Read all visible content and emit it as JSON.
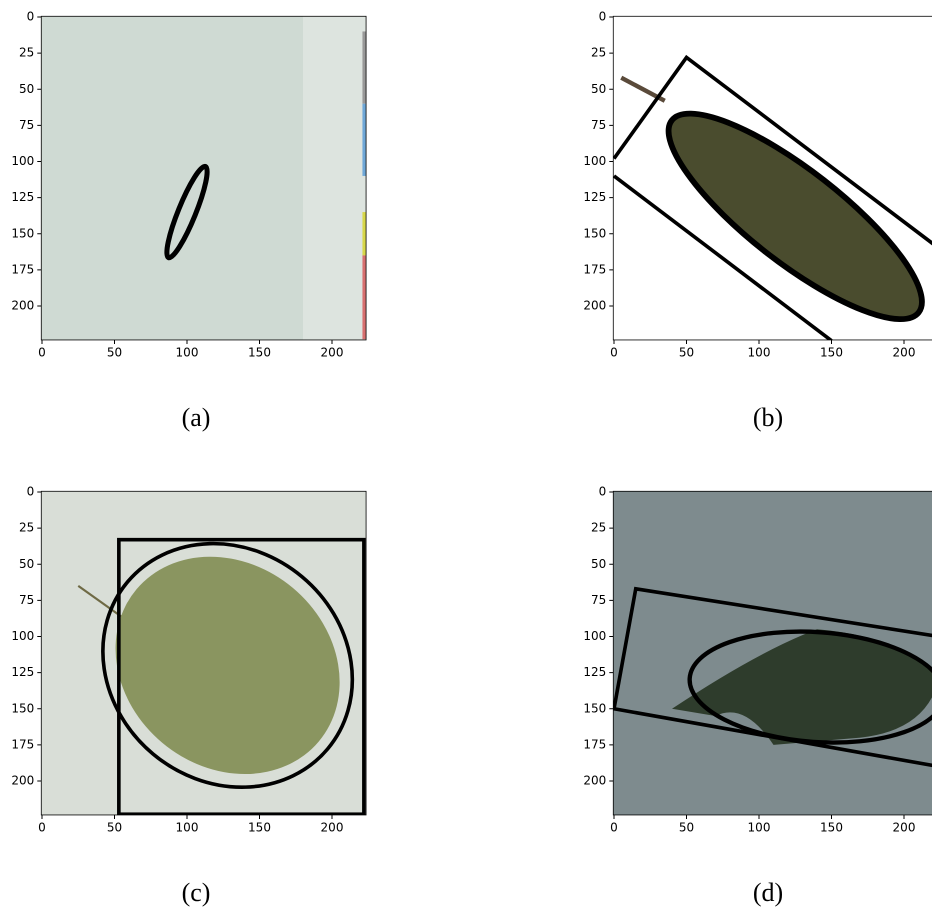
{
  "chart_data": [
    {
      "type": "image",
      "caption": "(a)",
      "xlim": [
        -0.5,
        223.5
      ],
      "ylim": [
        223.5,
        -0.5
      ],
      "xticks": [
        0,
        50,
        100,
        150,
        200
      ],
      "yticks": [
        0,
        25,
        50,
        75,
        100,
        125,
        150,
        175,
        200
      ]
    },
    {
      "type": "image",
      "caption": "(b)",
      "xlim": [
        -0.5,
        223.5
      ],
      "ylim": [
        223.5,
        -0.5
      ],
      "xticks": [
        0,
        50,
        100,
        150,
        200
      ],
      "yticks": [
        0,
        25,
        50,
        75,
        100,
        125,
        150,
        175,
        200
      ]
    },
    {
      "type": "image",
      "caption": "(c)",
      "xlim": [
        -0.5,
        223.5
      ],
      "ylim": [
        223.5,
        -0.5
      ],
      "xticks": [
        0,
        50,
        100,
        150,
        200
      ],
      "yticks": [
        0,
        25,
        50,
        75,
        100,
        125,
        150,
        175,
        200
      ]
    },
    {
      "type": "image",
      "caption": "(d)",
      "xlim": [
        -0.5,
        223.5
      ],
      "ylim": [
        223.5,
        -0.5
      ],
      "xticks": [
        0,
        50,
        100,
        150,
        200
      ],
      "yticks": [
        0,
        25,
        50,
        75,
        100,
        125,
        150,
        175,
        200
      ]
    }
  ]
}
